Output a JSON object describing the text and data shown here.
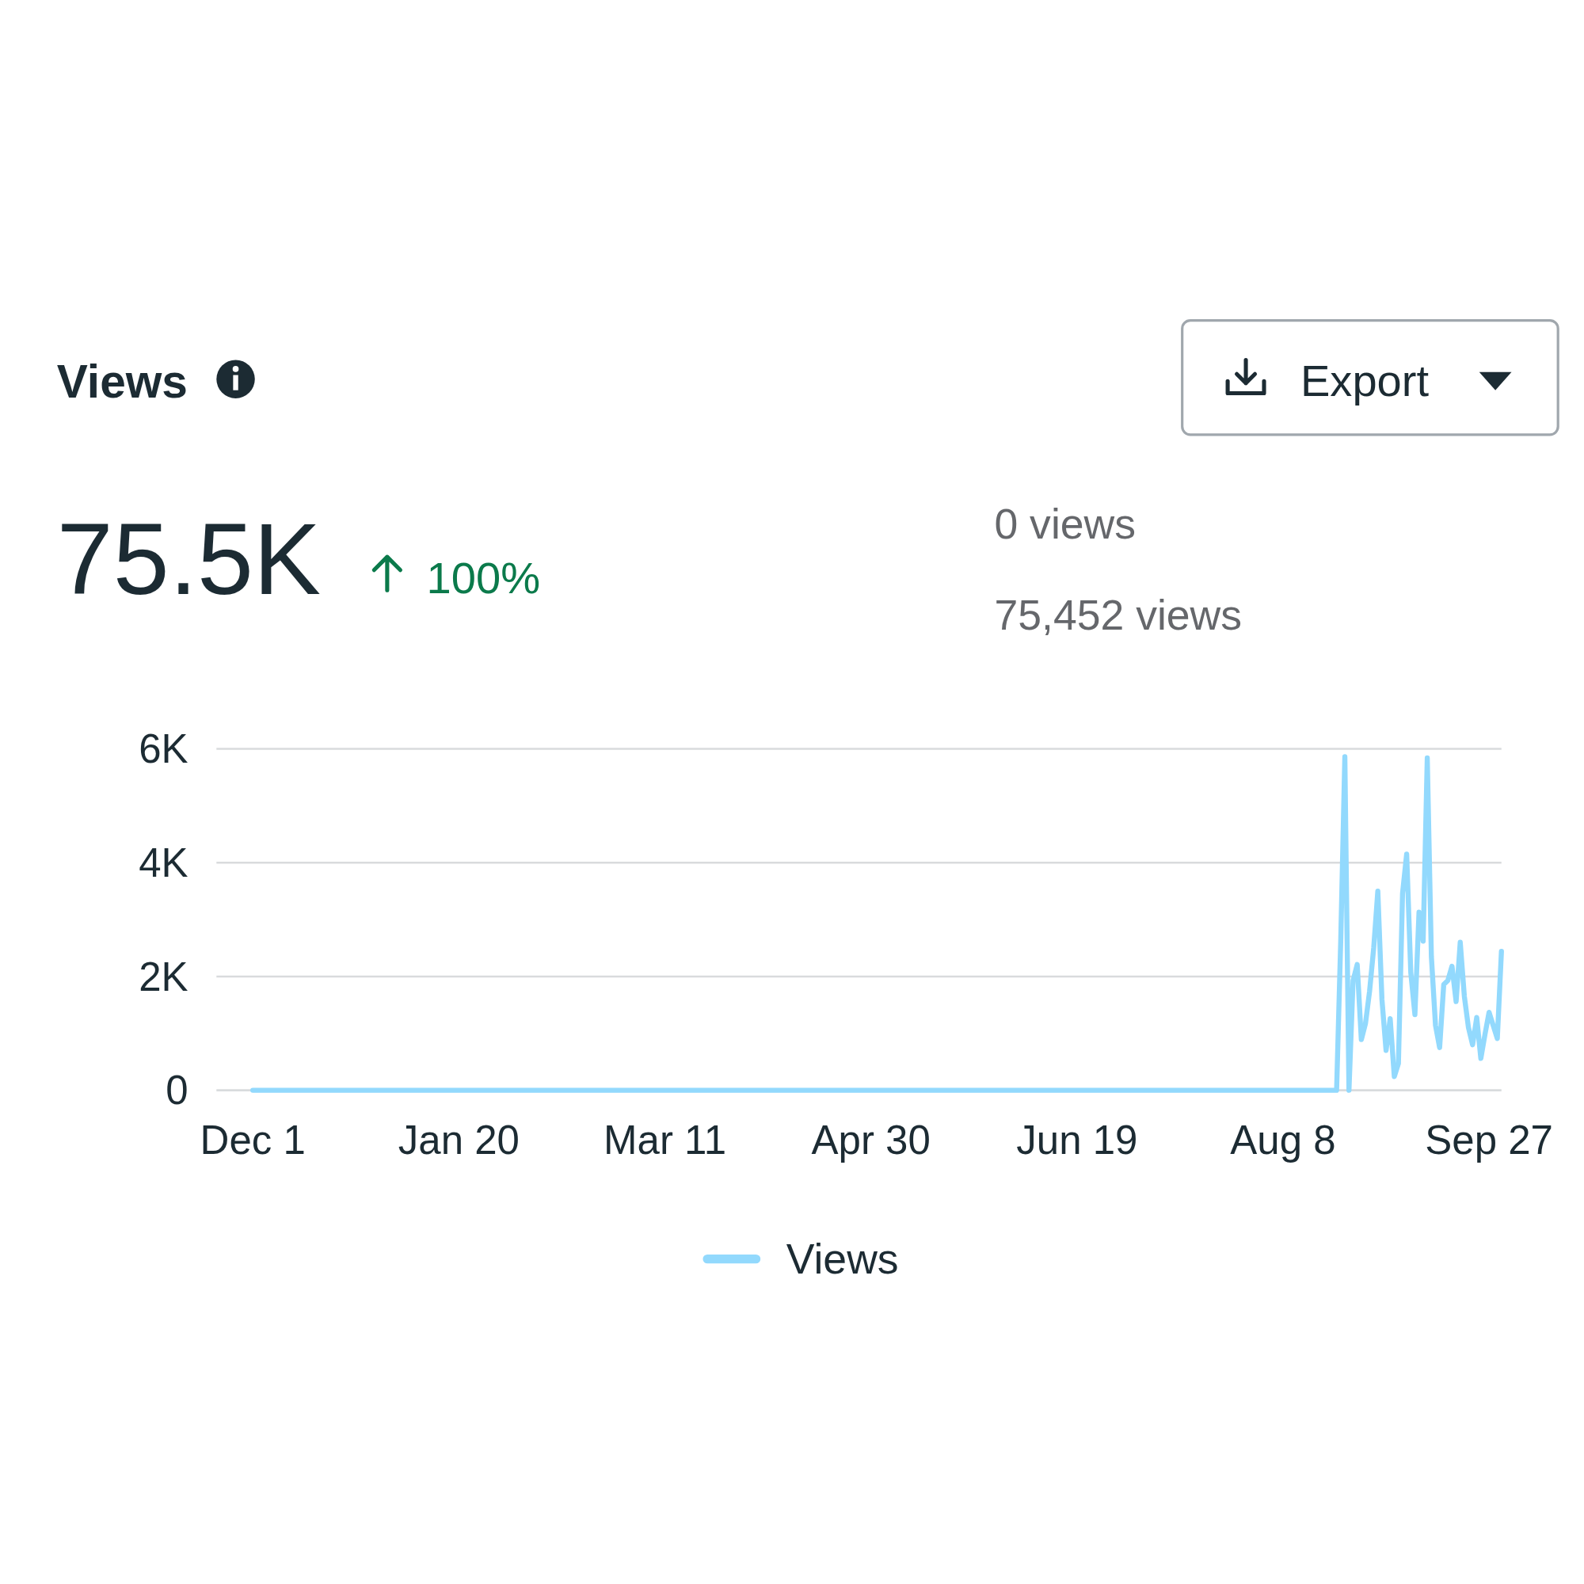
{
  "chart_data": {
    "type": "line",
    "title": "Views",
    "annotations": [
      "75.5K",
      "100%",
      "0 views",
      "75,452 views",
      "Export"
    ],
    "categories": [
      "Dec 1",
      null,
      null,
      null,
      null,
      null,
      null,
      null,
      null,
      null,
      null,
      null,
      null,
      null,
      null,
      null,
      null,
      null,
      null,
      null,
      null,
      null,
      null,
      null,
      null,
      null,
      null,
      null,
      null,
      null,
      null,
      null,
      null,
      null,
      null,
      null,
      null,
      null,
      null,
      null,
      null,
      null,
      null,
      null,
      null,
      null,
      null,
      null,
      null,
      null,
      "Jan 20",
      null,
      null,
      null,
      null,
      null,
      null,
      null,
      null,
      null,
      null,
      null,
      null,
      null,
      null,
      null,
      null,
      null,
      null,
      null,
      null,
      null,
      null,
      null,
      null,
      null,
      null,
      null,
      null,
      null,
      null,
      null,
      null,
      null,
      null,
      null,
      null,
      null,
      null,
      null,
      null,
      null,
      null,
      null,
      null,
      null,
      null,
      null,
      null,
      null,
      "Mar 11",
      null,
      null,
      null,
      null,
      null,
      null,
      null,
      null,
      null,
      null,
      null,
      null,
      null,
      null,
      null,
      null,
      null,
      null,
      null,
      null,
      null,
      null,
      null,
      null,
      null,
      null,
      null,
      null,
      null,
      null,
      null,
      null,
      null,
      null,
      null,
      null,
      null,
      null,
      null,
      null,
      null,
      null,
      null,
      null,
      null,
      null,
      null,
      null,
      null,
      "Apr 30",
      null,
      null,
      null,
      null,
      null,
      null,
      null,
      null,
      null,
      null,
      null,
      null,
      null,
      null,
      null,
      null,
      null,
      null,
      null,
      null,
      null,
      null,
      null,
      null,
      null,
      null,
      null,
      null,
      null,
      null,
      null,
      null,
      null,
      null,
      null,
      null,
      null,
      null,
      null,
      null,
      null,
      null,
      null,
      null,
      null,
      null,
      null,
      null,
      null,
      "Jun 19",
      null,
      null,
      null,
      null,
      null,
      null,
      null,
      null,
      null,
      null,
      null,
      null,
      null,
      null,
      null,
      null,
      null,
      null,
      null,
      null,
      null,
      null,
      null,
      null,
      null,
      null,
      null,
      null,
      null,
      null,
      null,
      null,
      null,
      null,
      null,
      null,
      null,
      null,
      null,
      null,
      null,
      null,
      null,
      null,
      null,
      null,
      null,
      null,
      null,
      "Aug 8",
      null,
      null,
      null,
      null,
      null,
      null,
      null,
      null,
      null,
      null,
      null,
      null,
      null,
      null,
      null,
      null,
      null,
      null,
      null,
      null,
      null,
      null,
      null,
      null,
      null,
      null,
      null,
      null,
      null,
      null,
      null,
      null,
      null,
      null,
      null,
      null,
      null,
      null,
      null,
      null,
      null,
      null,
      null,
      null,
      null,
      null,
      null,
      null,
      null,
      "Sep 27",
      null,
      null,
      null
    ],
    "series": [
      {
        "name": "Views",
        "color": "#92d9fd",
        "values": [
          0,
          0,
          0,
          0,
          0,
          0,
          0,
          0,
          0,
          0,
          0,
          0,
          0,
          0,
          0,
          0,
          0,
          0,
          0,
          0,
          0,
          0,
          0,
          0,
          0,
          0,
          0,
          0,
          0,
          0,
          0,
          0,
          0,
          0,
          0,
          0,
          0,
          0,
          0,
          0,
          0,
          0,
          0,
          0,
          0,
          0,
          0,
          0,
          0,
          0,
          0,
          0,
          0,
          0,
          0,
          0,
          0,
          0,
          0,
          0,
          0,
          0,
          0,
          0,
          0,
          0,
          0,
          0,
          0,
          0,
          0,
          0,
          0,
          0,
          0,
          0,
          0,
          0,
          0,
          0,
          0,
          0,
          0,
          0,
          0,
          0,
          0,
          0,
          0,
          0,
          0,
          0,
          0,
          0,
          0,
          0,
          0,
          0,
          0,
          0,
          0,
          0,
          0,
          0,
          0,
          0,
          0,
          0,
          0,
          0,
          0,
          0,
          0,
          0,
          0,
          0,
          0,
          0,
          0,
          0,
          0,
          0,
          0,
          0,
          0,
          0,
          0,
          0,
          0,
          0,
          0,
          0,
          0,
          0,
          0,
          0,
          0,
          0,
          0,
          0,
          0,
          0,
          0,
          0,
          0,
          0,
          0,
          0,
          0,
          0,
          0,
          0,
          0,
          0,
          0,
          0,
          0,
          0,
          0,
          0,
          0,
          0,
          0,
          0,
          0,
          0,
          0,
          0,
          0,
          0,
          0,
          0,
          0,
          0,
          0,
          0,
          0,
          0,
          0,
          0,
          0,
          0,
          0,
          0,
          0,
          0,
          0,
          0,
          0,
          0,
          0,
          0,
          0,
          0,
          0,
          0,
          0,
          0,
          0,
          0,
          0,
          0,
          0,
          0,
          0,
          0,
          0,
          0,
          0,
          0,
          0,
          0,
          0,
          0,
          0,
          0,
          0,
          0,
          0,
          0,
          0,
          0,
          0,
          0,
          0,
          0,
          0,
          0,
          0,
          0,
          0,
          0,
          0,
          0,
          0,
          0,
          0,
          0,
          0,
          0,
          0,
          0,
          0,
          0,
          0,
          0,
          0,
          0,
          0,
          0,
          0,
          0,
          0,
          0,
          0,
          0,
          0,
          0,
          0,
          0,
          0,
          0,
          0,
          0,
          2620,
          5860,
          0,
          1930,
          2210,
          890,
          1170,
          1740,
          2500,
          3500,
          1600,
          700,
          1260,
          240,
          470,
          3460,
          4150,
          2070,
          1330,
          3130,
          2620,
          5840,
          2350,
          1140,
          750,
          1860,
          1930,
          2180,
          1560,
          2600,
          1650,
          1100,
          800,
          1280,
          560,
          980,
          1370,
          1140,
          910,
          2440
        ]
      }
    ],
    "ylim": [
      0,
      6000
    ],
    "yticks": [
      {
        "value": 0,
        "label": "0"
      },
      {
        "value": 2000,
        "label": "2K"
      },
      {
        "value": 4000,
        "label": "4K"
      },
      {
        "value": 6000,
        "label": "6K"
      }
    ],
    "grid": "y",
    "legend": "bottom",
    "line_style": "solid"
  }
}
